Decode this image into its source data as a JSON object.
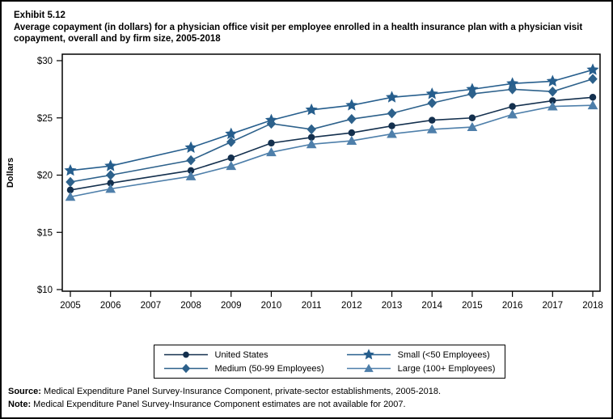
{
  "page": {
    "exhibit_label": "Exhibit 5.12",
    "title": "Average copayment (in dollars) for a physician office visit per employee enrolled in a health insurance plan with a physician visit copayment, overall and by firm size, 2005-2018"
  },
  "chart_data": {
    "type": "line",
    "x": [
      2005,
      2006,
      2007,
      2008,
      2009,
      2010,
      2011,
      2012,
      2013,
      2014,
      2015,
      2016,
      2017,
      2018
    ],
    "x_tick_labels": [
      "2005",
      "2006",
      "2007",
      "2008",
      "2009",
      "2010",
      "2011",
      "2012",
      "2013",
      "2014",
      "2015",
      "2016",
      "2017",
      "2018"
    ],
    "ylabel": "Dollars",
    "ylim": [
      10,
      30
    ],
    "y_ticks": [
      {
        "value": 10,
        "label": "$10"
      },
      {
        "value": 15,
        "label": "$15"
      },
      {
        "value": 20,
        "label": "$20"
      },
      {
        "value": 25,
        "label": "$25"
      },
      {
        "value": 30,
        "label": "$30"
      }
    ],
    "grid": false,
    "legend_position": "bottom",
    "note": "2007 values are not available; lines connect 2006 to 2008",
    "series": [
      {
        "name": "United States",
        "marker": "circle",
        "color": "#14304E",
        "values": [
          18.7,
          19.3,
          null,
          20.4,
          21.5,
          22.8,
          23.3,
          23.7,
          24.3,
          24.8,
          25.0,
          26.0,
          26.5,
          26.8
        ]
      },
      {
        "name": "Small (<50 Employees)",
        "marker": "star",
        "color": "#265E8D",
        "values": [
          20.4,
          20.8,
          null,
          22.4,
          23.6,
          24.8,
          25.7,
          26.1,
          26.8,
          27.1,
          27.5,
          28.0,
          28.2,
          29.2
        ]
      },
      {
        "name": "Medium (50-99 Employees)",
        "marker": "diamond",
        "color": "#2D618B",
        "values": [
          19.4,
          20.0,
          null,
          21.3,
          22.9,
          24.5,
          24.0,
          24.9,
          25.4,
          26.3,
          27.1,
          27.5,
          27.3,
          28.4
        ]
      },
      {
        "name": "Large (100+ Employees)",
        "marker": "triangle",
        "color": "#4E7FAA",
        "values": [
          18.1,
          18.8,
          null,
          19.9,
          20.8,
          22.0,
          22.7,
          23.0,
          23.6,
          24.0,
          24.2,
          25.3,
          26.0,
          26.1
        ]
      }
    ]
  },
  "footer": {
    "source_label": "Source:",
    "source_text": " Medical Expenditure Panel Survey-Insurance Component, private-sector establishments, 2005-2018.",
    "note_label": "Note:",
    "note_text": " Medical Expenditure Panel Survey-Insurance Component estimates are not available for 2007."
  }
}
